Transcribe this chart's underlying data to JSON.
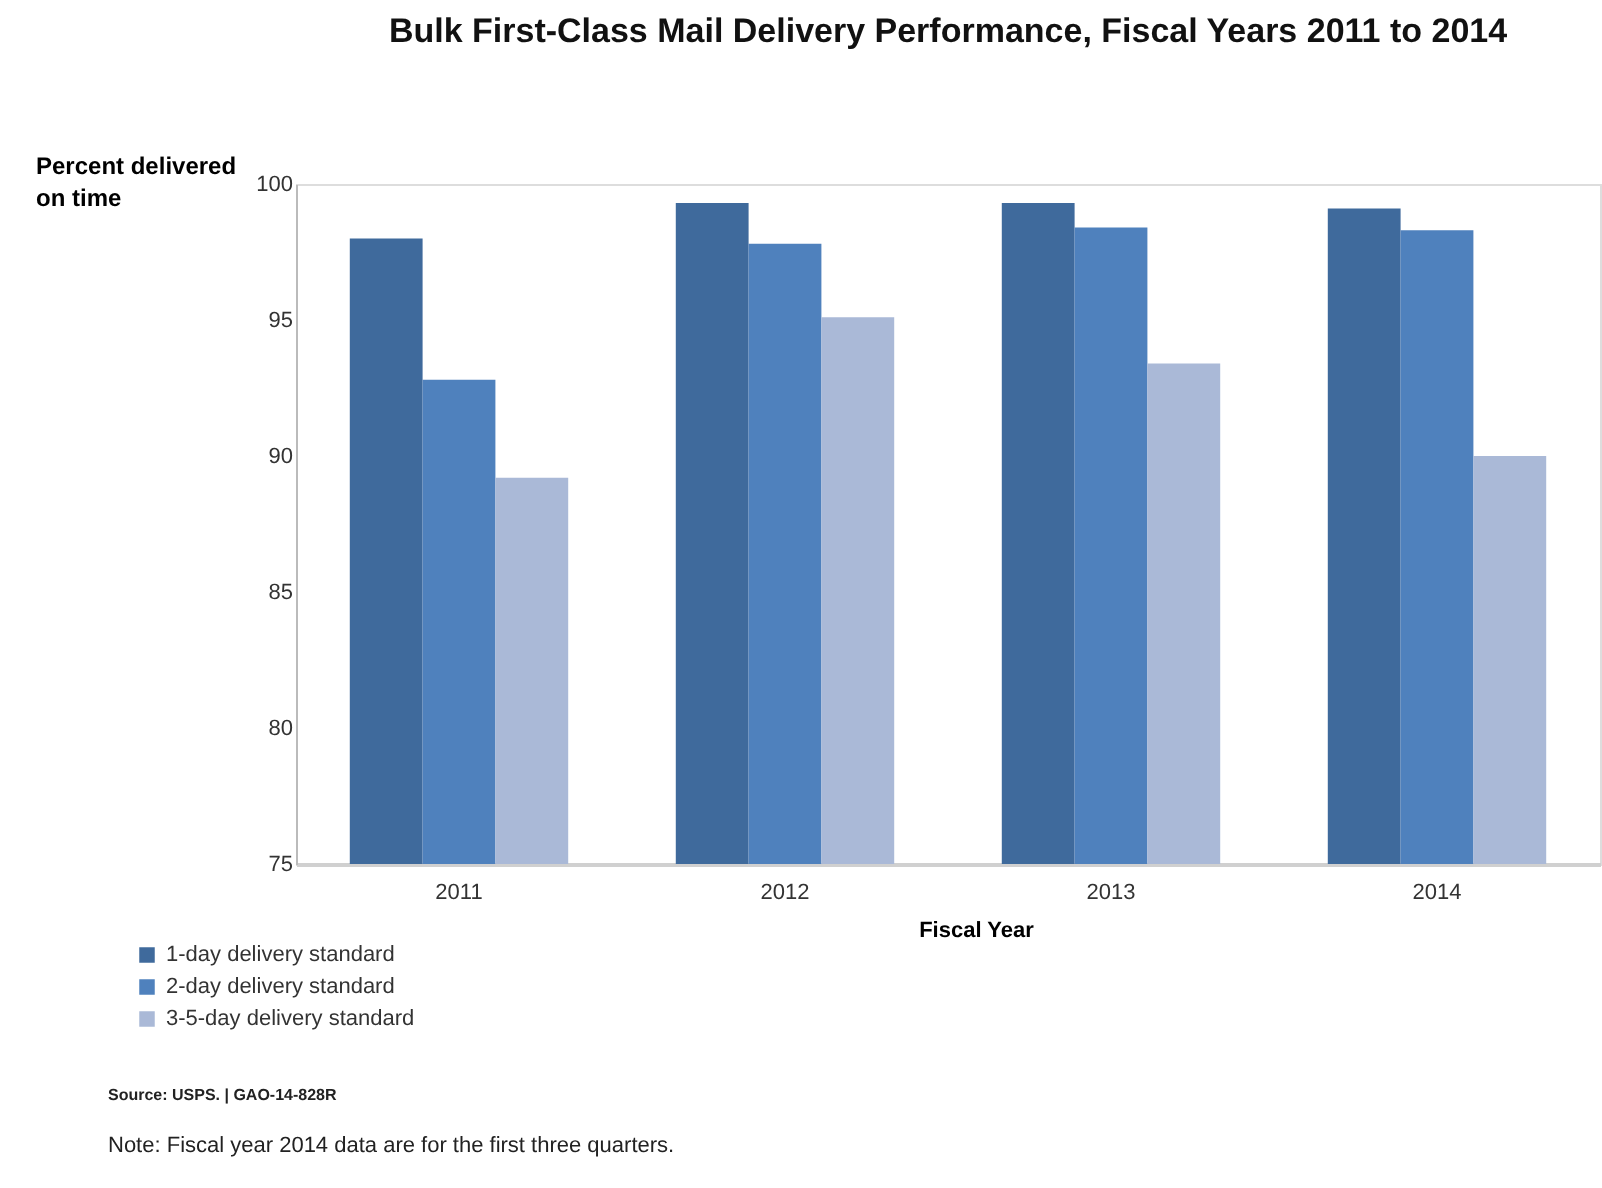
{
  "chart_data": {
    "type": "bar",
    "title": "Bulk First-Class Mail Delivery Performance, Fiscal Years 2011 to 2014",
    "xlabel": "Fiscal Year",
    "ylabel": "Percent delivered on time",
    "categories": [
      "2011",
      "2012",
      "2013",
      "2014"
    ],
    "series": [
      {
        "name": "1-day delivery standard",
        "color": "#3f6a9c",
        "values": [
          98.0,
          99.3,
          99.3,
          99.1
        ]
      },
      {
        "name": "2-day delivery standard",
        "color": "#4f81bd",
        "values": [
          92.8,
          97.8,
          98.4,
          98.3
        ]
      },
      {
        "name": "3-5-day delivery standard",
        "color": "#aab9d7",
        "values": [
          89.2,
          95.1,
          93.4,
          90.0
        ]
      }
    ],
    "ylim": [
      75,
      100
    ],
    "yticks": [
      75,
      80,
      85,
      90,
      95,
      100
    ],
    "grid": false,
    "legend": "bottom left",
    "annotations": [
      "Source: USPS.  | GAO-14-828R",
      "Note: Fiscal year 2014 data are for the first three quarters."
    ]
  }
}
